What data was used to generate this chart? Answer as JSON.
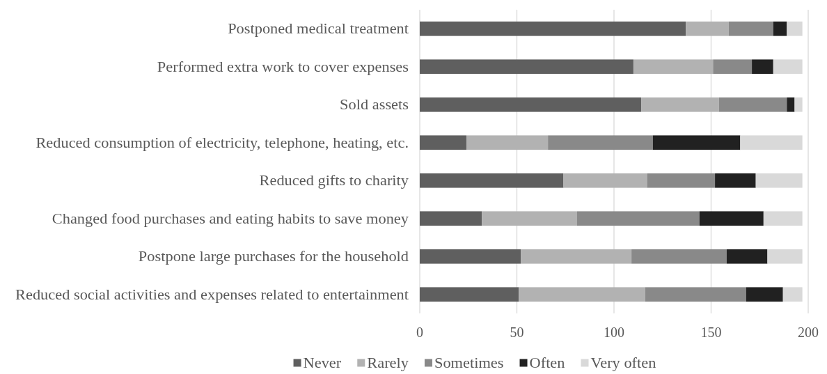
{
  "chart_data": {
    "type": "bar",
    "orientation": "horizontal",
    "stacked": true,
    "categories": [
      "Postponed medical treatment",
      "Performed extra work to cover expenses",
      "Sold assets",
      "Reduced consumption of electricity, telephone, heating, etc.",
      "Reduced gifts to charity",
      "Changed food purchases and eating habits to save money",
      "Postpone large purchases for the household",
      "Reduced social activities and expenses related to entertainment"
    ],
    "series": [
      {
        "name": "Never",
        "color": "#5f5f5f",
        "values": [
          137,
          110,
          114,
          24,
          74,
          32,
          52,
          51
        ]
      },
      {
        "name": "Rarely",
        "color": "#b2b2b2",
        "values": [
          22,
          41,
          40,
          42,
          43,
          49,
          57,
          65
        ]
      },
      {
        "name": "Sometimes",
        "color": "#898989",
        "values": [
          23,
          20,
          35,
          54,
          35,
          63,
          49,
          52
        ]
      },
      {
        "name": "Often",
        "color": "#212121",
        "values": [
          7,
          11,
          4,
          45,
          21,
          33,
          21,
          19
        ]
      },
      {
        "name": "Very often",
        "color": "#d9d9d9",
        "values": [
          8,
          15,
          4,
          32,
          24,
          20,
          18,
          10
        ]
      }
    ],
    "xlim": [
      0,
      200
    ],
    "xticks": [
      0,
      50,
      100,
      150,
      200
    ],
    "grid": "x",
    "legend": "bottom"
  }
}
